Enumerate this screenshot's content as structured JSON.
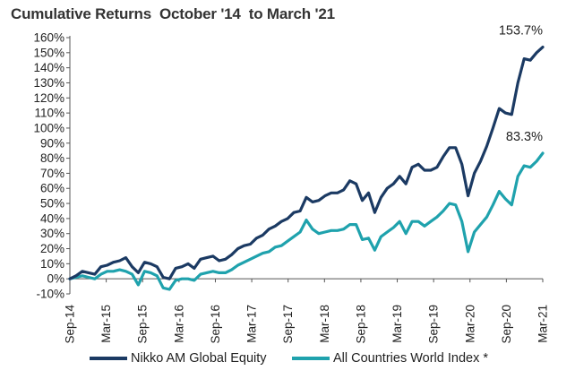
{
  "chart_data": {
    "type": "line",
    "title": "Cumulative Returns  October '14  to March '21",
    "xlabel": "",
    "ylabel": "",
    "ylim": [
      -10,
      160
    ],
    "yticks": [
      -10,
      0,
      10,
      20,
      30,
      40,
      50,
      60,
      70,
      80,
      90,
      100,
      110,
      120,
      130,
      140,
      150,
      160
    ],
    "ytick_labels": [
      "-10%",
      "0%",
      "10%",
      "20%",
      "30%",
      "40%",
      "50%",
      "60%",
      "70%",
      "80%",
      "90%",
      "100%",
      "110%",
      "120%",
      "130%",
      "140%",
      "150%",
      "160%"
    ],
    "xticks": [
      "Sep-14",
      "Mar-15",
      "Sep-15",
      "Mar-16",
      "Sep-16",
      "Mar-17",
      "Sep-17",
      "Mar-18",
      "Sep-18",
      "Mar-19",
      "Sep-19",
      "Mar-20",
      "Sep-20",
      "Mar-21"
    ],
    "grid": false,
    "legend_position": "bottom",
    "series": [
      {
        "name": "Nikko AM Global Equity",
        "color": "#1b3a63",
        "end_label": "153.7%",
        "values": [
          0,
          2,
          5,
          4,
          3,
          8,
          9,
          11,
          12,
          14,
          8,
          4,
          11,
          10,
          8,
          1,
          0,
          7,
          8,
          10,
          7,
          13,
          14,
          15,
          12,
          13,
          16,
          20,
          22,
          23,
          27,
          29,
          33,
          35,
          38,
          40,
          44,
          45,
          54,
          51,
          52,
          55,
          57,
          57,
          59,
          65,
          63,
          52,
          57,
          44,
          54,
          60,
          63,
          68,
          63,
          74,
          76,
          72,
          72,
          74,
          81,
          87,
          87,
          76,
          55,
          70,
          78,
          88,
          100,
          113,
          110,
          109,
          130,
          146,
          145,
          150,
          153.7
        ]
      },
      {
        "name": "All Countries World Index *",
        "color": "#1fa2ad",
        "end_label": "83.3%",
        "values": [
          0,
          1,
          2,
          1,
          0,
          3,
          5,
          5,
          6,
          5,
          3,
          -4,
          5,
          4,
          2,
          -6,
          -7,
          -1,
          0,
          0,
          -1,
          3,
          4,
          5,
          4,
          4,
          6,
          9,
          11,
          13,
          15,
          17,
          18,
          21,
          22,
          25,
          28,
          31,
          39,
          33,
          30,
          31,
          32,
          32,
          33,
          36,
          36,
          26,
          27,
          19,
          28,
          31,
          34,
          38,
          30,
          38,
          38,
          35,
          38,
          41,
          45,
          50,
          49,
          38,
          18,
          31,
          36,
          41,
          49,
          58,
          53,
          49,
          68,
          75,
          74,
          78,
          83.3
        ]
      }
    ]
  }
}
